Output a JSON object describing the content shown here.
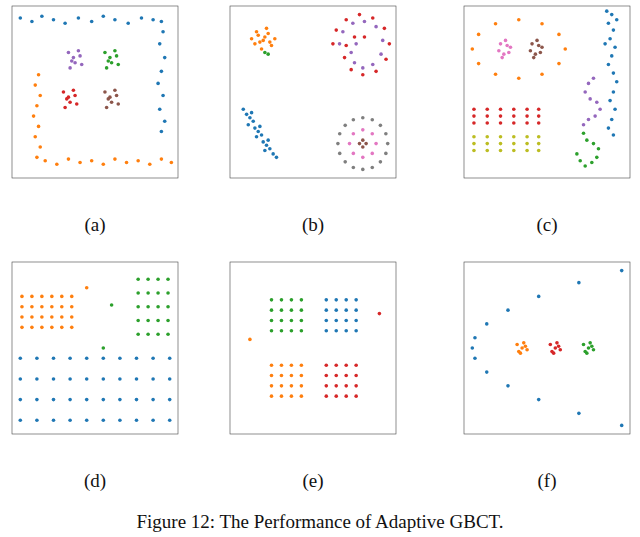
{
  "caption": "Figure 12: The Performance of Adaptive GBCT.",
  "chart_data": [
    {
      "type": "scatter",
      "annotations": [
        "(a)"
      ],
      "xlim": [
        0,
        100
      ],
      "ylim": [
        0,
        100
      ],
      "tick_labels": false,
      "series": [
        {
          "color": "#1f77b4",
          "x": [
            5,
            12,
            18,
            25,
            32,
            40,
            48,
            55,
            62,
            70,
            78,
            85,
            90,
            91,
            89,
            92,
            90,
            88,
            91,
            89,
            92,
            90
          ],
          "values": [
            93,
            91,
            94,
            92,
            90,
            93,
            91,
            94,
            92,
            90,
            93,
            92,
            91,
            85,
            78,
            70,
            62,
            55,
            48,
            40,
            33,
            27
          ]
        },
        {
          "color": "#ff7f0e",
          "x": [
            16,
            14,
            17,
            15,
            13,
            16,
            14,
            17,
            15,
            20,
            27,
            34,
            41,
            48,
            55,
            62,
            69,
            76,
            83,
            90,
            96
          ],
          "values": [
            60,
            54,
            48,
            42,
            36,
            30,
            24,
            18,
            12,
            10,
            8,
            11,
            9,
            10,
            8,
            11,
            9,
            10,
            8,
            11,
            9
          ]
        },
        {
          "color": "#9467bd",
          "x": [
            34,
            37,
            40,
            42,
            35,
            38,
            41,
            36
          ],
          "values": [
            73,
            70,
            74,
            66,
            64,
            67,
            71,
            68
          ]
        },
        {
          "color": "#2ca02c",
          "x": [
            56,
            59,
            62,
            64,
            57,
            60,
            63,
            58
          ],
          "values": [
            73,
            70,
            74,
            66,
            64,
            67,
            71,
            68
          ]
        },
        {
          "color": "#d62728",
          "x": [
            31,
            34,
            37,
            39,
            32,
            35,
            38,
            33
          ],
          "values": [
            50,
            47,
            51,
            43,
            41,
            44,
            48,
            46
          ]
        },
        {
          "color": "#8c564b",
          "x": [
            56,
            59,
            62,
            64,
            57,
            60,
            63,
            58
          ],
          "values": [
            50,
            47,
            51,
            43,
            41,
            44,
            48,
            46
          ]
        }
      ]
    },
    {
      "type": "scatter",
      "annotations": [
        "(b)"
      ],
      "xlim": [
        0,
        100
      ],
      "ylim": [
        0,
        100
      ],
      "tick_labels": false,
      "series": [
        {
          "color": "#ff7f0e",
          "x": [
            20,
            17,
            23,
            15,
            25,
            19,
            22,
            13,
            27,
            18,
            21,
            24,
            16
          ],
          "values": [
            80,
            83,
            84,
            78,
            77,
            75,
            87,
            81,
            81,
            79,
            82,
            79,
            85
          ]
        },
        {
          "color": "#2ca02c",
          "x": [
            21,
            23
          ],
          "values": [
            73,
            72
          ]
        },
        {
          "color": "#1f77b4",
          "x": [
            8,
            10,
            12,
            11,
            14,
            15,
            17,
            16,
            19,
            20,
            22,
            21,
            24,
            26,
            28,
            13,
            18,
            23
          ],
          "values": [
            40,
            37,
            35,
            31,
            33,
            29,
            27,
            24,
            25,
            21,
            19,
            16,
            17,
            14,
            12,
            38,
            30,
            22
          ]
        },
        {
          "color": "#d62728",
          "x": [
            62,
            64,
            70,
            78,
            86,
            93,
            96,
            94,
            88,
            80,
            73,
            69,
            70,
            75,
            81
          ],
          "values": [
            78,
            86,
            92,
            95,
            93,
            87,
            78,
            69,
            62,
            60,
            63,
            70,
            77,
            82,
            82
          ]
        },
        {
          "color": "#9467bd",
          "x": [
            66,
            68,
            74,
            81,
            88,
            92,
            91,
            86,
            80,
            75,
            73,
            76
          ],
          "values": [
            78,
            85,
            90,
            91,
            88,
            80,
            72,
            66,
            64,
            67,
            73,
            78
          ]
        },
        {
          "color": "#7f7f7f",
          "x": [
            95,
            93.9,
            90.6,
            85.7,
            80,
            74.3,
            69.4,
            66.1,
            65,
            66.1,
            69.4,
            74.3,
            80,
            85.7,
            90.6,
            93.9
          ],
          "values": [
            20,
            25.7,
            30.6,
            33.9,
            35,
            33.9,
            30.6,
            25.7,
            20,
            14.3,
            9.4,
            6.1,
            5,
            6.1,
            9.4,
            14.3
          ]
        },
        {
          "color": "#e377c2",
          "x": [
            88,
            85.7,
            80,
            74.3,
            72,
            74.3,
            80,
            85.7
          ],
          "values": [
            20,
            25.7,
            28,
            25.7,
            20,
            14.3,
            12,
            14.3
          ]
        },
        {
          "color": "#8c564b",
          "x": [
            82,
            80,
            78,
            80
          ],
          "values": [
            20,
            22,
            20,
            18
          ]
        }
      ]
    },
    {
      "type": "scatter",
      "annotations": [
        "(c)"
      ],
      "xlim": [
        0,
        100
      ],
      "ylim": [
        0,
        100
      ],
      "tick_labels": false,
      "series": [
        {
          "color": "#ff7f0e",
          "x": [
            61,
            57.2,
            47,
            33,
            19,
            8.8,
            5,
            8.8,
            19,
            33,
            47,
            57.2
          ],
          "values": [
            75,
            83.5,
            89.7,
            92,
            89.7,
            83.5,
            75,
            66.5,
            60.3,
            58,
            60.3,
            66.5
          ]
        },
        {
          "color": "#e377c2",
          "x": [
            22,
            25,
            28,
            24,
            21,
            26,
            23,
            27
          ],
          "values": [
            78,
            80,
            76,
            72,
            74,
            77,
            70,
            73
          ]
        },
        {
          "color": "#8c564b",
          "x": [
            41,
            44,
            47,
            43,
            40,
            45,
            42,
            46
          ],
          "values": [
            78,
            80,
            76,
            72,
            74,
            77,
            70,
            73
          ]
        },
        {
          "color": "#1f77b4",
          "x": [
            86,
            89,
            87,
            90,
            88,
            91,
            89,
            87,
            90,
            92,
            90,
            88,
            91,
            89,
            87,
            90,
            92,
            85
          ],
          "values": [
            97,
            95,
            90,
            86,
            81,
            76,
            71,
            66,
            61,
            56,
            50,
            45,
            40,
            34,
            29,
            25,
            92,
            78
          ]
        },
        {
          "color": "#9467bd",
          "x": [
            78,
            75,
            73,
            76,
            80,
            82,
            79,
            75,
            72
          ],
          "values": [
            58,
            55,
            50,
            46,
            44,
            40,
            36,
            34,
            31
          ]
        },
        {
          "color": "#2ca02c",
          "x": [
            72,
            74,
            78,
            81,
            80,
            77,
            73,
            70,
            68
          ],
          "values": [
            26,
            22,
            20,
            17,
            12,
            9,
            7,
            10,
            14
          ]
        },
        {
          "color": "#d62728",
          "x": [
            6,
            14,
            22,
            30,
            38,
            45,
            6,
            14,
            22,
            30,
            38,
            45,
            6,
            14,
            22,
            30,
            38,
            45
          ],
          "values": [
            32,
            32,
            32,
            32,
            32,
            32,
            36,
            36,
            36,
            36,
            36,
            36,
            40,
            40,
            40,
            40,
            40,
            40
          ]
        },
        {
          "color": "#bcbd22",
          "x": [
            6,
            14,
            22,
            30,
            38,
            45,
            6,
            14,
            22,
            30,
            38,
            45,
            6,
            14,
            22,
            30,
            38,
            45
          ],
          "values": [
            16,
            16,
            16,
            16,
            16,
            16,
            20,
            20,
            20,
            20,
            20,
            20,
            24,
            24,
            24,
            24,
            24,
            24
          ]
        }
      ]
    },
    {
      "type": "scatter",
      "annotations": [
        "(d)"
      ],
      "xlim": [
        0,
        100
      ],
      "ylim": [
        0,
        100
      ],
      "tick_labels": false,
      "series": [
        {
          "color": "#ff7f0e",
          "x": [
            6,
            12,
            18,
            24,
            30,
            36,
            6,
            12,
            18,
            24,
            30,
            36,
            6,
            12,
            18,
            24,
            30,
            36,
            6,
            12,
            18,
            24,
            30,
            36,
            45
          ],
          "values": [
            62,
            62,
            62,
            62,
            62,
            62,
            68,
            68,
            68,
            68,
            68,
            68,
            74,
            74,
            74,
            74,
            74,
            74,
            80,
            80,
            80,
            80,
            80,
            80,
            85
          ]
        },
        {
          "color": "#2ca02c",
          "x": [
            76,
            82,
            88,
            94,
            76,
            82,
            88,
            94,
            76,
            82,
            88,
            94,
            76,
            82,
            88,
            94,
            76,
            82,
            88,
            94,
            60,
            55
          ],
          "values": [
            58,
            58,
            58,
            58,
            66,
            66,
            66,
            66,
            74,
            74,
            74,
            74,
            82,
            82,
            82,
            82,
            90,
            90,
            90,
            90,
            75,
            50
          ]
        },
        {
          "color": "#1f77b4",
          "x": [
            5,
            15,
            25,
            35,
            45,
            55,
            65,
            75,
            85,
            95,
            5,
            15,
            25,
            35,
            45,
            55,
            65,
            75,
            85,
            95,
            5,
            15,
            25,
            35,
            45,
            55,
            65,
            75,
            85,
            95,
            5,
            15,
            25,
            35,
            45,
            55,
            65,
            75,
            85,
            95
          ],
          "values": [
            8,
            8,
            8,
            8,
            8,
            8,
            8,
            8,
            8,
            8,
            20,
            20,
            20,
            20,
            20,
            20,
            20,
            20,
            20,
            20,
            32,
            32,
            32,
            32,
            32,
            32,
            32,
            32,
            32,
            32,
            44,
            44,
            44,
            44,
            44,
            44,
            44,
            44,
            44,
            44
          ]
        }
      ]
    },
    {
      "type": "scatter",
      "annotations": [
        "(e)"
      ],
      "xlim": [
        0,
        100
      ],
      "ylim": [
        0,
        100
      ],
      "tick_labels": false,
      "series": [
        {
          "color": "#2ca02c",
          "x": [
            25,
            31,
            37,
            43,
            25,
            31,
            37,
            43,
            25,
            31,
            37,
            43,
            25,
            31,
            37,
            43
          ],
          "values": [
            60,
            60,
            60,
            60,
            66,
            66,
            66,
            66,
            72,
            72,
            72,
            72,
            78,
            78,
            78,
            78
          ]
        },
        {
          "color": "#1f77b4",
          "x": [
            58,
            64,
            70,
            76,
            58,
            64,
            70,
            76,
            58,
            64,
            70,
            76,
            58,
            64,
            70,
            76
          ],
          "values": [
            60,
            60,
            60,
            60,
            66,
            66,
            66,
            66,
            72,
            72,
            72,
            72,
            78,
            78,
            78,
            78
          ]
        },
        {
          "color": "#ff7f0e",
          "x": [
            25,
            31,
            37,
            43,
            25,
            31,
            37,
            43,
            25,
            31,
            37,
            43,
            25,
            31,
            37,
            43,
            12
          ],
          "values": [
            22,
            22,
            22,
            22,
            28,
            28,
            28,
            28,
            34,
            34,
            34,
            34,
            40,
            40,
            40,
            40,
            55
          ]
        },
        {
          "color": "#d62728",
          "x": [
            58,
            64,
            70,
            76,
            58,
            64,
            70,
            76,
            58,
            64,
            70,
            76,
            58,
            64,
            70,
            76,
            90
          ],
          "values": [
            22,
            22,
            22,
            22,
            28,
            28,
            28,
            28,
            34,
            34,
            34,
            34,
            40,
            40,
            40,
            40,
            70
          ]
        }
      ]
    },
    {
      "type": "scatter",
      "annotations": [
        "(f)"
      ],
      "xlim": [
        0,
        100
      ],
      "ylim": [
        0,
        100
      ],
      "tick_labels": false,
      "series": [
        {
          "color": "#1f77b4",
          "x": [
            95,
            69.2,
            45,
            26.5,
            13.7,
            6.6,
            5,
            6.6,
            13.7,
            26.5,
            45,
            69.2,
            95
          ],
          "values": [
            95,
            88,
            80,
            72,
            64,
            56,
            50,
            44,
            36,
            28,
            20,
            12,
            5
          ]
        },
        {
          "color": "#ff7f0e",
          "x": [
            35,
            32,
            38,
            34,
            36,
            33,
            37
          ],
          "values": [
            50,
            52,
            49,
            47,
            53,
            48,
            51
          ]
        },
        {
          "color": "#d62728",
          "x": [
            55,
            52,
            58,
            54,
            56,
            53,
            57
          ],
          "values": [
            50,
            52,
            49,
            47,
            53,
            48,
            51
          ]
        },
        {
          "color": "#2ca02c",
          "x": [
            75,
            72,
            78,
            74,
            76,
            73,
            77
          ],
          "values": [
            50,
            52,
            49,
            47,
            53,
            48,
            51
          ]
        }
      ]
    }
  ]
}
